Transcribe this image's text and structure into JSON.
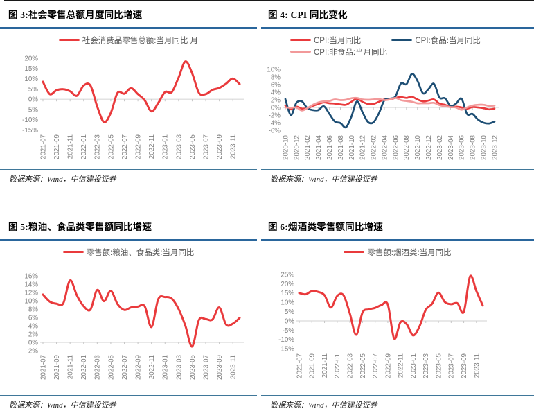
{
  "page": {
    "type": "research-report-figure-grid"
  },
  "colors": {
    "red": "#e93a3c",
    "navy": "#1d4e74",
    "pink": "#f2999a",
    "title_rule": "#2a669c",
    "source_rule": "#3f7799",
    "axis_line": "#d9d9d9",
    "axis_tick": "#c6c6c6",
    "axis_label": "#808080",
    "legend_text": "#595959"
  },
  "panels": [
    {
      "id": "fig3",
      "source": "数据来源：Wind，中信建投证券"
    },
    {
      "id": "fig4",
      "source": "数据来源：Wind，中信建投证券"
    },
    {
      "id": "fig5",
      "source": "数据来源：Wind，中信建投证券"
    },
    {
      "id": "fig6",
      "source": "数据来源：Wind，中信建投证券"
    }
  ],
  "chart_data": [
    {
      "id": "fig3",
      "type": "line",
      "title": "图 3:社会零售总额月度同比增速",
      "x_months": [
        "2021-07",
        "2021-08",
        "2021-09",
        "2021-10",
        "2021-11",
        "2021-12",
        "2022-01",
        "2022-02",
        "2022-03",
        "2022-04",
        "2022-05",
        "2022-06",
        "2022-07",
        "2022-08",
        "2022-09",
        "2022-10",
        "2022-11",
        "2022-12",
        "2023-01",
        "2023-02",
        "2023-03",
        "2023-04",
        "2023-05",
        "2023-06",
        "2023-07",
        "2023-08",
        "2023-09",
        "2023-10",
        "2023-11",
        "2023-12"
      ],
      "x_tick_labels": [
        "2021-07",
        "2021-09",
        "2021-11",
        "2022-01",
        "2022-03",
        "2022-05",
        "2022-07",
        "2022-09",
        "2022-11",
        "2023-01",
        "2023-03",
        "2023-05",
        "2023-07",
        "2023-09",
        "2023-11"
      ],
      "ylim": [
        -15,
        20
      ],
      "yticks": [
        20,
        15,
        10,
        5,
        0,
        -5,
        -10,
        -15
      ],
      "ytick_suffix": "%",
      "grid": false,
      "legend_position": "top-center",
      "series": [
        {
          "name": "社会消费品零售总额:当月同比 月",
          "color": "#e93a3c",
          "values": [
            8.5,
            2.5,
            4.4,
            4.9,
            3.9,
            1.7,
            6.7,
            6.7,
            -3.5,
            -11.1,
            -6.7,
            3.1,
            2.7,
            5.4,
            2.5,
            -0.5,
            -5.9,
            -1.8,
            3.5,
            3.5,
            10.6,
            18.4,
            12.7,
            3.1,
            2.5,
            4.6,
            5.5,
            7.6,
            10.1,
            7.4
          ]
        }
      ]
    },
    {
      "id": "fig4",
      "type": "line",
      "title": "图 4: CPI 同比变化",
      "x_months": [
        "2020-10",
        "2020-11",
        "2020-12",
        "2021-01",
        "2021-02",
        "2021-03",
        "2021-04",
        "2021-05",
        "2021-06",
        "2021-07",
        "2021-08",
        "2021-09",
        "2021-10",
        "2021-11",
        "2021-12",
        "2022-01",
        "2022-02",
        "2022-03",
        "2022-04",
        "2022-05",
        "2022-06",
        "2022-07",
        "2022-08",
        "2022-09",
        "2022-10",
        "2022-11",
        "2022-12",
        "2023-01",
        "2023-02",
        "2023-03",
        "2023-04",
        "2023-05",
        "2023-06",
        "2023-07",
        "2023-08",
        "2023-09",
        "2023-10",
        "2023-11",
        "2023-12"
      ],
      "x_tick_labels": [
        "2020-10",
        "2020-12",
        "2021-02",
        "2021-04",
        "2021-06",
        "2021-08",
        "2021-10",
        "2021-12",
        "2022-02",
        "2022-04",
        "2022-06",
        "2022-08",
        "2022-10",
        "2022-12",
        "2023-02",
        "2023-04",
        "2023-06",
        "2023-08",
        "2023-10",
        "2023-12"
      ],
      "ylim": [
        -6,
        10
      ],
      "yticks": [
        10,
        8,
        6,
        4,
        2,
        0,
        -2,
        -4,
        -6
      ],
      "ytick_suffix": "%",
      "grid": false,
      "legend_position": "top-left",
      "legend_rows": [
        [
          "CPI:当月同比",
          "CPI:食品:当月同比"
        ],
        [
          "CPI:非食品:当月同比"
        ]
      ],
      "series": [
        {
          "name": "CPI:当月同比",
          "color": "#e93a3c",
          "values": [
            0.5,
            -0.5,
            0.2,
            -0.3,
            -0.2,
            0.4,
            0.9,
            1.3,
            1.1,
            1.0,
            0.8,
            0.7,
            1.5,
            2.3,
            1.5,
            0.9,
            0.9,
            1.5,
            2.1,
            2.1,
            2.5,
            2.7,
            2.5,
            2.8,
            2.1,
            1.6,
            1.8,
            2.1,
            1.0,
            0.7,
            0.1,
            0.2,
            0.0,
            -0.3,
            0.1,
            0.0,
            -0.2,
            -0.5,
            -0.3
          ]
        },
        {
          "name": "CPI:食品:当月同比",
          "color": "#1d4e74",
          "values": [
            2.2,
            -2.0,
            1.2,
            1.6,
            -0.2,
            -0.7,
            -0.7,
            0.3,
            -1.7,
            -3.7,
            -4.1,
            -5.2,
            -2.4,
            1.6,
            -1.2,
            -3.8,
            -3.9,
            -1.5,
            1.9,
            2.3,
            2.9,
            6.3,
            6.1,
            8.8,
            7.0,
            3.7,
            4.8,
            6.2,
            2.6,
            2.4,
            0.4,
            1.0,
            2.3,
            -1.7,
            -1.7,
            -3.2,
            -4.0,
            -4.2,
            -3.7
          ]
        },
        {
          "name": "CPI:非食品:当月同比",
          "color": "#f2999a",
          "values": [
            0.0,
            -0.1,
            0.0,
            -0.8,
            -0.2,
            0.7,
            1.3,
            1.6,
            1.7,
            2.1,
            1.9,
            2.0,
            2.4,
            2.5,
            2.1,
            2.0,
            2.1,
            2.2,
            1.9,
            2.1,
            2.5,
            1.9,
            1.7,
            1.5,
            1.1,
            1.1,
            1.1,
            1.2,
            0.6,
            0.3,
            0.1,
            0.0,
            -0.6,
            0.0,
            0.5,
            0.7,
            0.7,
            0.4,
            0.5
          ]
        }
      ]
    },
    {
      "id": "fig5",
      "type": "line",
      "title": "图 5:粮油、食品类零售额同比增速",
      "x_months": [
        "2021-07",
        "2021-08",
        "2021-09",
        "2021-10",
        "2021-11",
        "2021-12",
        "2022-01",
        "2022-02",
        "2022-03",
        "2022-04",
        "2022-05",
        "2022-06",
        "2022-07",
        "2022-08",
        "2022-09",
        "2022-10",
        "2022-11",
        "2022-12",
        "2023-01",
        "2023-02",
        "2023-03",
        "2023-04",
        "2023-05",
        "2023-06",
        "2023-07",
        "2023-08",
        "2023-09",
        "2023-10",
        "2023-11",
        "2023-12"
      ],
      "x_tick_labels": [
        "2021-07",
        "2021-09",
        "2021-11",
        "2022-01",
        "2022-03",
        "2022-05",
        "2022-07",
        "2022-09",
        "2022-11",
        "2023-01",
        "2023-03",
        "2023-05",
        "2023-07",
        "2023-09",
        "2023-11"
      ],
      "ylim": [
        -2,
        16
      ],
      "yticks": [
        16,
        14,
        12,
        10,
        8,
        6,
        4,
        2,
        0,
        -2
      ],
      "ytick_suffix": "%",
      "grid": false,
      "legend_position": "top-center",
      "series": [
        {
          "name": "零售额:粮油、食品类:当月同比",
          "color": "#e93a3c",
          "values": [
            11.5,
            9.8,
            9.3,
            9.4,
            14.9,
            11.3,
            8.7,
            7.9,
            12.6,
            9.9,
            12.4,
            9.2,
            7.8,
            8.4,
            8.6,
            8.7,
            3.7,
            10.4,
            10.9,
            10.5,
            8.0,
            4.0,
            -1.0,
            5.4,
            5.6,
            5.5,
            8.4,
            4.3,
            4.5,
            5.9
          ]
        }
      ]
    },
    {
      "id": "fig6",
      "type": "line",
      "title": "图 6:烟酒类零售额同比增速",
      "x_months": [
        "2021-07",
        "2021-08",
        "2021-09",
        "2021-10",
        "2021-11",
        "2021-12",
        "2022-01",
        "2022-02",
        "2022-03",
        "2022-04",
        "2022-05",
        "2022-06",
        "2022-07",
        "2022-08",
        "2022-09",
        "2022-10",
        "2022-11",
        "2022-12",
        "2023-01",
        "2023-02",
        "2023-03",
        "2023-04",
        "2023-05",
        "2023-06",
        "2023-07",
        "2023-08",
        "2023-09",
        "2023-10",
        "2023-11",
        "2023-12"
      ],
      "x_tick_labels": [
        "2021-07",
        "2021-09",
        "2021-11",
        "2022-01",
        "2022-03",
        "2022-05",
        "2022-07",
        "2022-09",
        "2022-11",
        "2023-01",
        "2023-03",
        "2023-05",
        "2023-07",
        "2023-09",
        "2023-11"
      ],
      "ylim": [
        -15,
        25
      ],
      "yticks": [
        25,
        20,
        15,
        10,
        5,
        0,
        -5,
        -10,
        -15
      ],
      "ytick_suffix": "%",
      "grid": false,
      "legend_position": "top-center",
      "series": [
        {
          "name": "零售额:烟酒类:当月同比",
          "color": "#e93a3c",
          "values": [
            15.0,
            14.3,
            16.0,
            15.6,
            13.8,
            7.2,
            13.4,
            13.8,
            4.0,
            -7.5,
            4.5,
            6.2,
            7.0,
            8.5,
            8.8,
            -9.5,
            -0.7,
            -1.8,
            -7.8,
            -3.0,
            6.0,
            9.2,
            15.2,
            10.2,
            9.0,
            9.5,
            4.8,
            24.0,
            16.0,
            8.3
          ]
        }
      ]
    }
  ]
}
